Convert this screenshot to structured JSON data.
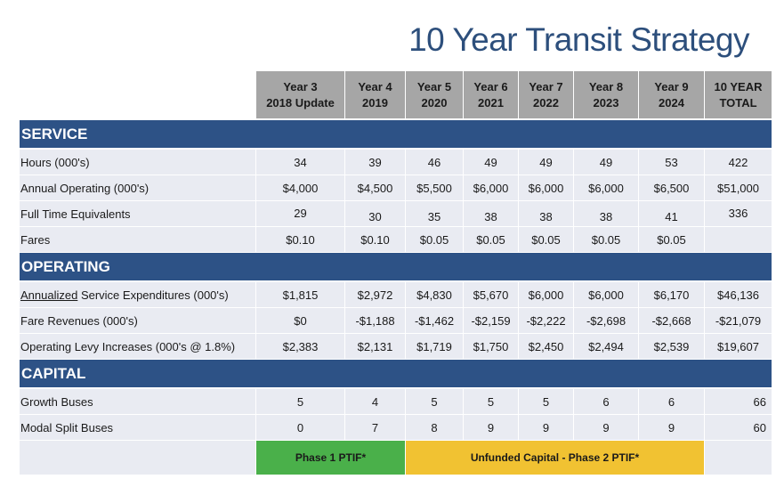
{
  "title": "10 Year Transit Strategy",
  "columns": [
    {
      "line1": "Year 3",
      "line2": "2018 Update"
    },
    {
      "line1": "Year 4",
      "line2": "2019"
    },
    {
      "line1": "Year 5",
      "line2": "2020"
    },
    {
      "line1": "Year 6",
      "line2": "2021"
    },
    {
      "line1": "Year 7",
      "line2": "2022"
    },
    {
      "line1": "Year 8",
      "line2": "2023"
    },
    {
      "line1": "Year 9",
      "line2": "2024"
    },
    {
      "line1": "10 YEAR",
      "line2": "TOTAL"
    }
  ],
  "sections": {
    "service": {
      "title": "SERVICE",
      "rows": [
        {
          "label": "Hours (000's)",
          "values": [
            "34",
            "39",
            "46",
            "49",
            "49",
            "49",
            "53",
            "422"
          ]
        },
        {
          "label": "Annual Operating (000's)",
          "values": [
            "$4,000",
            "$4,500",
            "$5,500",
            "$6,000",
            "$6,000",
            "$6,000",
            "$6,500",
            "$51,000"
          ]
        },
        {
          "label": "Full Time Equivalents",
          "values": [
            "29",
            "30",
            "35",
            "38",
            "38",
            "38",
            "41",
            "336"
          ]
        },
        {
          "label": "Fares",
          "values": [
            "$0.10",
            "$0.10",
            "$0.05",
            "$0.05",
            "$0.05",
            "$0.05",
            "$0.05",
            ""
          ]
        }
      ]
    },
    "operating": {
      "title": "OPERATING",
      "rows": [
        {
          "label_underlined": "Annualized",
          "label_rest": " Service Expenditures (000's)",
          "values": [
            "$1,815",
            "$2,972",
            "$4,830",
            "$5,670",
            "$6,000",
            "$6,000",
            "$6,170",
            "$46,136"
          ]
        },
        {
          "label": "Fare Revenues (000's)",
          "values": [
            "$0",
            "-$1,188",
            "-$1,462",
            "-$2,159",
            "-$2,222",
            "-$2,698",
            "-$2,668",
            "-$21,079"
          ]
        },
        {
          "label": "Operating Levy Increases (000's @ 1.8%)",
          "values": [
            "$2,383",
            "$2,131",
            "$1,719",
            "$1,750",
            "$2,450",
            "$2,494",
            "$2,539",
            "$19,607"
          ]
        }
      ]
    },
    "capital": {
      "title": "CAPITAL",
      "rows": [
        {
          "label": "Growth Buses",
          "values": [
            "5",
            "4",
            "5",
            "5",
            "5",
            "6",
            "6",
            "66"
          ]
        },
        {
          "label": "Modal Split Buses",
          "values": [
            "0",
            "7",
            "8",
            "9",
            "9",
            "9",
            "9",
            "60"
          ]
        }
      ]
    }
  },
  "footer": {
    "phase1": "Phase 1 PTIF*",
    "phase2": "Unfunded Capital - Phase 2 PTIF*"
  },
  "colors": {
    "section_bar": "#2d5286",
    "header_gray": "#a6a6a6",
    "row_fill": "#e9ebf2",
    "phase1_green": "#4ab04a",
    "phase2_yellow": "#f1c232",
    "title_blue": "#2d4f7c"
  }
}
